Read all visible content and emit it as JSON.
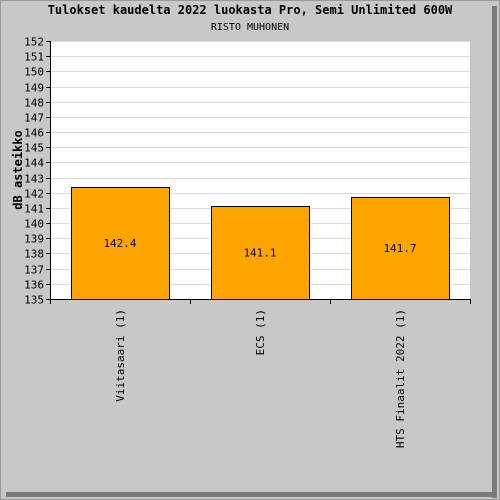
{
  "header": {
    "title": "Tulokset kaudelta 2022 luokasta Pro, Semi Unlimited 600W",
    "subtitle": "RISTO MUHONEN"
  },
  "chart_data": {
    "type": "bar",
    "title": "Tulokset kaudelta 2022 luokasta Pro, Semi Unlimited 600W",
    "subtitle": "RISTO MUHONEN",
    "xlabel": "",
    "ylabel": "dB asteikko",
    "ylim": [
      135,
      152
    ],
    "yticks": [
      135,
      136,
      137,
      138,
      139,
      140,
      141,
      142,
      143,
      144,
      145,
      146,
      147,
      148,
      149,
      150,
      151,
      152
    ],
    "categories": [
      "Viitasaari (1)",
      "ECS (1)",
      "HTS Finaalit 2022 (1)"
    ],
    "values": [
      142.4,
      141.1,
      141.7
    ],
    "value_labels": [
      "142.4",
      "141.1",
      "141.7"
    ],
    "grid": true,
    "bar_color": "#ffa500",
    "plot_background": "#ffffff",
    "frame_background": "#c8c8c8"
  }
}
